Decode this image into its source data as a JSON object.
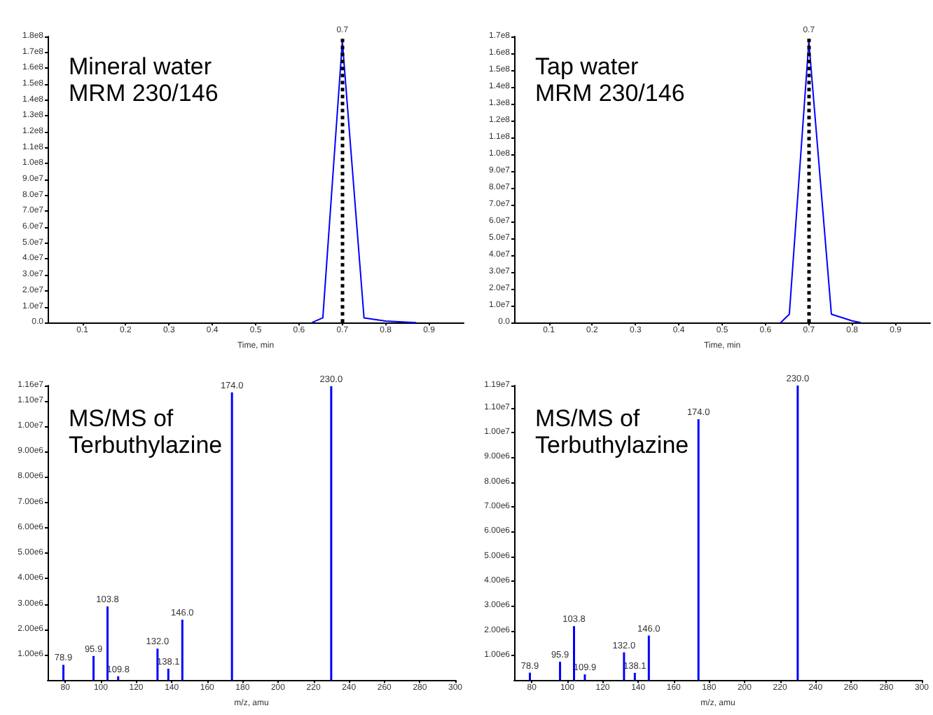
{
  "chart_data": [
    {
      "type": "line",
      "title": "Mineral water",
      "subtitle": "MRM 230/146",
      "xlabel": "Time, min",
      "xlim": [
        0.02,
        0.98
      ],
      "xticks": [
        0.1,
        0.2,
        0.3,
        0.4,
        0.5,
        0.6,
        0.7,
        0.8,
        0.9
      ],
      "ylim": [
        0,
        180000000
      ],
      "yticks": [
        {
          "value": 0,
          "label": "0.0"
        },
        {
          "value": 10000000,
          "label": "1.0e7"
        },
        {
          "value": 20000000,
          "label": "2.0e7"
        },
        {
          "value": 30000000,
          "label": "3.0e7"
        },
        {
          "value": 40000000,
          "label": "4.0e7"
        },
        {
          "value": 50000000,
          "label": "5.0e7"
        },
        {
          "value": 60000000,
          "label": "6.0e7"
        },
        {
          "value": 70000000,
          "label": "7.0e7"
        },
        {
          "value": 80000000,
          "label": "8.0e7"
        },
        {
          "value": 90000000,
          "label": "9.0e7"
        },
        {
          "value": 100000000,
          "label": "1.0e8"
        },
        {
          "value": 110000000,
          "label": "1.1e8"
        },
        {
          "value": 120000000,
          "label": "1.2e8"
        },
        {
          "value": 130000000,
          "label": "1.3e8"
        },
        {
          "value": 140000000,
          "label": "1.4e8"
        },
        {
          "value": 150000000,
          "label": "1.5e8"
        },
        {
          "value": 160000000,
          "label": "1.6e8"
        },
        {
          "value": 170000000,
          "label": "1.7e8"
        },
        {
          "value": 180000000,
          "label": "1.8e8"
        }
      ],
      "series": [
        {
          "color": "#0000ff",
          "x": [
            0.63,
            0.655,
            0.7,
            0.75,
            0.8,
            0.87
          ],
          "values": [
            0,
            3000000,
            177000000,
            3000000,
            1000000,
            0
          ]
        }
      ],
      "ref_lines": [
        {
          "axis": "x",
          "value": 0.7,
          "label": "0.7",
          "color": "#000000",
          "line_style": "dotted"
        }
      ],
      "marker": "none",
      "grid": false
    },
    {
      "type": "line",
      "title": "Tap water",
      "subtitle": "MRM 230/146",
      "xlabel": "Time, min",
      "xlim": [
        0.02,
        0.98
      ],
      "xticks": [
        0.1,
        0.2,
        0.3,
        0.4,
        0.5,
        0.6,
        0.7,
        0.8,
        0.9
      ],
      "ylim": [
        0,
        170000000
      ],
      "yticks": [
        {
          "value": 0,
          "label": "0.0"
        },
        {
          "value": 10000000,
          "label": "1.0e7"
        },
        {
          "value": 20000000,
          "label": "2.0e7"
        },
        {
          "value": 30000000,
          "label": "3.0e7"
        },
        {
          "value": 40000000,
          "label": "4.0e7"
        },
        {
          "value": 50000000,
          "label": "5.0e7"
        },
        {
          "value": 60000000,
          "label": "6.0e7"
        },
        {
          "value": 70000000,
          "label": "7.0e7"
        },
        {
          "value": 80000000,
          "label": "8.0e7"
        },
        {
          "value": 90000000,
          "label": "9.0e7"
        },
        {
          "value": 100000000,
          "label": "1.0e8"
        },
        {
          "value": 110000000,
          "label": "1.1e8"
        },
        {
          "value": 120000000,
          "label": "1.2e8"
        },
        {
          "value": 130000000,
          "label": "1.3e8"
        },
        {
          "value": 140000000,
          "label": "1.4e8"
        },
        {
          "value": 150000000,
          "label": "1.5e8"
        },
        {
          "value": 160000000,
          "label": "1.6e8"
        },
        {
          "value": 170000000,
          "label": "1.7e8"
        }
      ],
      "series": [
        {
          "color": "#0000ff",
          "x": [
            0.635,
            0.655,
            0.7,
            0.752,
            0.8,
            0.82
          ],
          "values": [
            0,
            5000000,
            167000000,
            5000000,
            1000000,
            0
          ]
        }
      ],
      "ref_lines": [
        {
          "axis": "x",
          "value": 0.7,
          "label": "0.7",
          "color": "#000000",
          "line_style": "dotted"
        }
      ],
      "marker": "none",
      "grid": false
    },
    {
      "type": "bar",
      "title": "MS/MS of",
      "subtitle": "Terbuthylazine",
      "xlabel": "m/z, amu",
      "xlim": [
        70,
        300
      ],
      "xticks": [
        80,
        100,
        120,
        140,
        160,
        180,
        200,
        220,
        240,
        260,
        280,
        300
      ],
      "ylim": [
        0,
        11600000
      ],
      "yticks": [
        {
          "value": 1000000,
          "label": "1.00e6"
        },
        {
          "value": 2000000,
          "label": "2.00e6"
        },
        {
          "value": 3000000,
          "label": "3.00e6"
        },
        {
          "value": 4000000,
          "label": "4.00e6"
        },
        {
          "value": 5000000,
          "label": "5.00e6"
        },
        {
          "value": 6000000,
          "label": "6.00e6"
        },
        {
          "value": 7000000,
          "label": "7.00e6"
        },
        {
          "value": 8000000,
          "label": "8.00e6"
        },
        {
          "value": 9000000,
          "label": "9.00e6"
        },
        {
          "value": 10000000,
          "label": "1.00e7"
        },
        {
          "value": 11000000,
          "label": "1.10e7"
        },
        {
          "value": 11600000,
          "label": "1.16e7"
        }
      ],
      "series": [
        {
          "color": "#0000ff",
          "x": [
            78.9,
            95.9,
            103.8,
            109.8,
            132.0,
            138.1,
            146.0,
            174.0,
            230.0
          ],
          "values": [
            600000,
            950000,
            2900000,
            150000,
            1240000,
            450000,
            2380000,
            11330000,
            11570000
          ]
        }
      ],
      "annotations": [
        {
          "text": "78.9",
          "x": 78.9,
          "y": 600000
        },
        {
          "text": "95.9",
          "x": 95.9,
          "y": 950000
        },
        {
          "text": "103.8",
          "x": 103.8,
          "y": 2900000
        },
        {
          "text": "109.8",
          "x": 109.8,
          "y": 150000
        },
        {
          "text": "132.0",
          "x": 132.0,
          "y": 1240000
        },
        {
          "text": "138.1",
          "x": 138.1,
          "y": 450000
        },
        {
          "text": "146.0",
          "x": 146.0,
          "y": 2380000
        },
        {
          "text": "174.0",
          "x": 174.0,
          "y": 11330000
        },
        {
          "text": "230.0",
          "x": 230.0,
          "y": 11570000
        }
      ],
      "grid": false
    },
    {
      "type": "bar",
      "title": "MS/MS of",
      "subtitle": "Terbuthylazine",
      "xlabel": "m/z, amu",
      "xlim": [
        70,
        300
      ],
      "xticks": [
        80,
        100,
        120,
        140,
        160,
        180,
        200,
        220,
        240,
        260,
        280,
        300
      ],
      "ylim": [
        0,
        11900000
      ],
      "yticks": [
        {
          "value": 1000000,
          "label": "1.00e6"
        },
        {
          "value": 2000000,
          "label": "2.00e6"
        },
        {
          "value": 3000000,
          "label": "3.00e6"
        },
        {
          "value": 4000000,
          "label": "4.00e6"
        },
        {
          "value": 5000000,
          "label": "5.00e6"
        },
        {
          "value": 6000000,
          "label": "6.00e6"
        },
        {
          "value": 7000000,
          "label": "7.00e6"
        },
        {
          "value": 8000000,
          "label": "8.00e6"
        },
        {
          "value": 9000000,
          "label": "9.00e6"
        },
        {
          "value": 10000000,
          "label": "1.00e7"
        },
        {
          "value": 11000000,
          "label": "1.10e7"
        },
        {
          "value": 11900000,
          "label": "1.19e7"
        }
      ],
      "series": [
        {
          "color": "#0000ff",
          "x": [
            78.9,
            95.9,
            103.8,
            109.9,
            132.0,
            138.1,
            146.0,
            174.0,
            230.0
          ],
          "values": [
            300000,
            740000,
            2180000,
            230000,
            1120000,
            290000,
            1800000,
            10540000,
            11900000
          ]
        }
      ],
      "annotations": [
        {
          "text": "78.9",
          "x": 78.9,
          "y": 300000
        },
        {
          "text": "95.9",
          "x": 95.9,
          "y": 740000
        },
        {
          "text": "103.8",
          "x": 103.8,
          "y": 2180000
        },
        {
          "text": "109.9",
          "x": 109.9,
          "y": 230000
        },
        {
          "text": "132.0",
          "x": 132.0,
          "y": 1120000
        },
        {
          "text": "138.1",
          "x": 138.1,
          "y": 290000
        },
        {
          "text": "146.0",
          "x": 146.0,
          "y": 1800000
        },
        {
          "text": "174.0",
          "x": 174.0,
          "y": 10540000
        },
        {
          "text": "230.0",
          "x": 230.0,
          "y": 11900000
        }
      ],
      "grid": false
    }
  ]
}
